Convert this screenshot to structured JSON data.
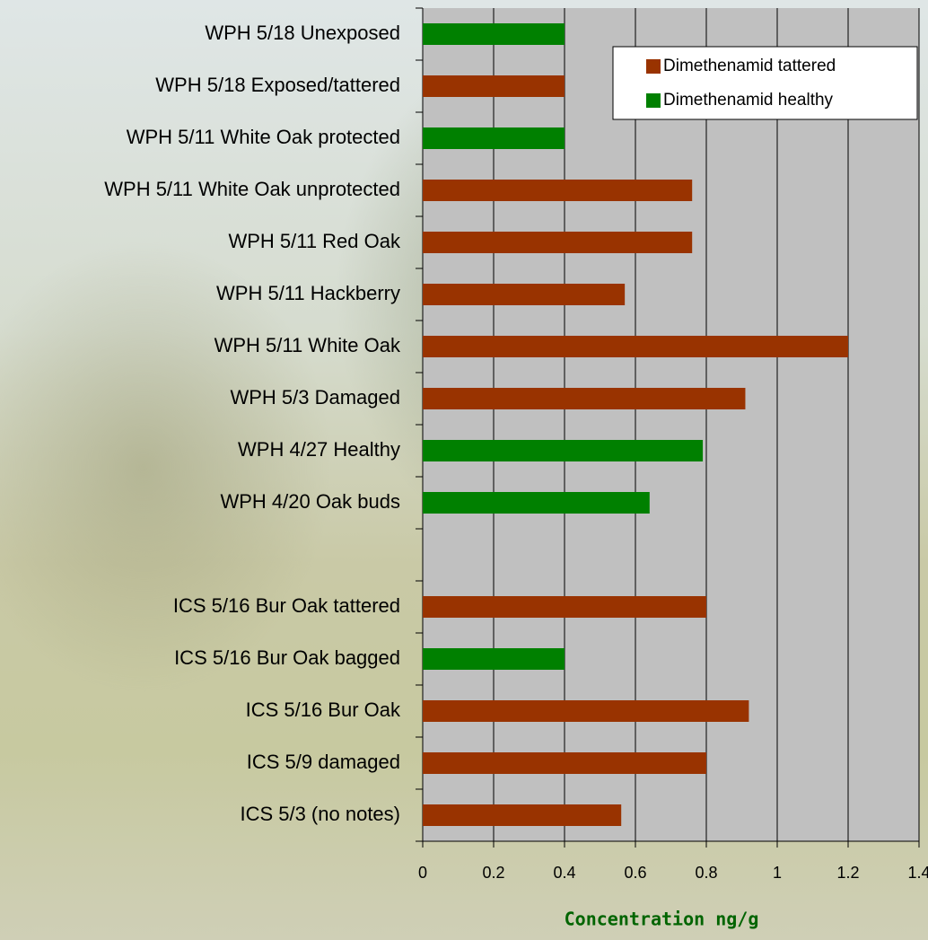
{
  "chart_data": {
    "type": "barh",
    "x_label": "Concentration ng/g",
    "categories": [
      "WPH 5/18 Unexposed",
      "WPH 5/18 Exposed/tattered",
      "WPH 5/11 White Oak protected",
      "WPH 5/11 White Oak unprotected",
      "WPH 5/11 Red Oak",
      "WPH 5/11 Hackberry",
      "WPH 5/11 White Oak",
      "WPH 5/3 Damaged",
      "WPH 4/27 Healthy",
      "WPH 4/20 Oak buds",
      null,
      "ICS 5/16 Bur Oak tattered",
      "ICS 5/16 Bur Oak bagged",
      "ICS 5/16 Bur Oak",
      "ICS 5/9 damaged",
      "ICS 5/3 (no notes)"
    ],
    "series": [
      {
        "name": "Dimethenamid tattered",
        "color": "#993300",
        "values": [
          null,
          0.4,
          null,
          0.76,
          0.76,
          0.57,
          1.2,
          0.91,
          null,
          null,
          null,
          0.8,
          null,
          0.92,
          0.8,
          0.56
        ]
      },
      {
        "name": "Dimethenamid healthy",
        "color": "#008000",
        "values": [
          0.4,
          null,
          0.4,
          null,
          null,
          null,
          null,
          null,
          0.79,
          0.64,
          null,
          null,
          0.4,
          null,
          null,
          null
        ]
      }
    ],
    "xlim": [
      0,
      1.4
    ],
    "xticks": [
      0,
      0.2,
      0.4,
      0.6,
      0.8,
      1,
      1.2,
      1.4
    ],
    "grid": true,
    "legend": "upper right",
    "plot_background": "#c0c0c0"
  }
}
